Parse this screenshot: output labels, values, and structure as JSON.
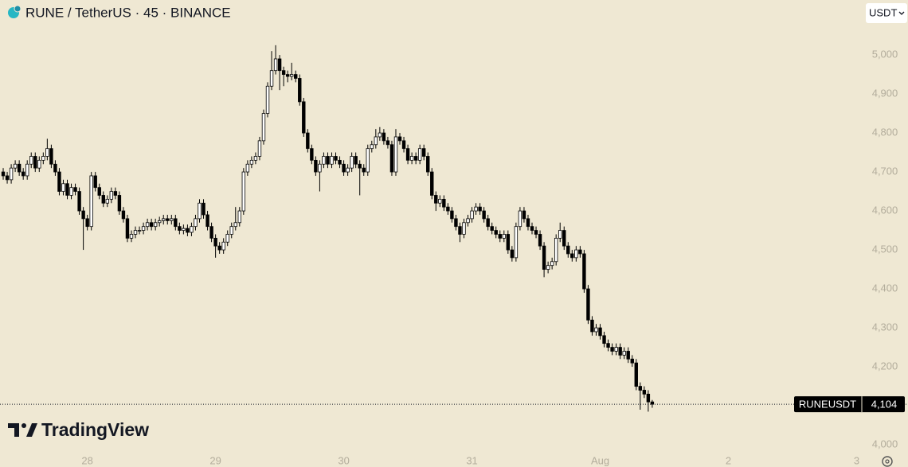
{
  "chart_data": {
    "type": "candlestick",
    "title": "RUNE / TetherUS · 45 · BINANCE",
    "currency": "USDT",
    "watermark": "TradingView",
    "up_color": "#ffffff",
    "down_color": "#000000",
    "xlim": [
      -0.8,
      214.9
    ],
    "xticks": [
      {
        "value": 21,
        "label": "28"
      },
      {
        "value": 53,
        "label": "29"
      },
      {
        "value": 85,
        "label": "30"
      },
      {
        "value": 117,
        "label": "31"
      },
      {
        "value": 149,
        "label": "Aug"
      },
      {
        "value": 181,
        "label": "2"
      },
      {
        "value": 213,
        "label": "3"
      }
    ],
    "ylim": [
      3943,
      5141
    ],
    "yticks": [
      {
        "value": 4000,
        "label": "4,000"
      },
      {
        "value": 4100,
        "label": "4,100"
      },
      {
        "value": 4200,
        "label": "4,200"
      },
      {
        "value": 4300,
        "label": "4,300"
      },
      {
        "value": 4400,
        "label": "4,400"
      },
      {
        "value": 4500,
        "label": "4,500"
      },
      {
        "value": 4600,
        "label": "4,600"
      },
      {
        "value": 4700,
        "label": "4,700"
      },
      {
        "value": 4800,
        "label": "4,800"
      },
      {
        "value": 4900,
        "label": "4,900"
      },
      {
        "value": 5000,
        "label": "5,000"
      }
    ],
    "last_price": {
      "value": 4104,
      "label": "4,104"
    },
    "series": [
      {
        "name": "RUNEUSDT",
        "open": [
          4700,
          4690,
          4680,
          4710,
          4720,
          4700,
          4690,
          4720,
          4740,
          4710,
          4730,
          4740,
          4760,
          4720,
          4700,
          4650,
          4670,
          4640,
          4660,
          4650,
          4600,
          4580,
          4560,
          4690,
          4660,
          4640,
          4620,
          4630,
          4650,
          4640,
          4600,
          4580,
          4530,
          4540,
          4550,
          4550,
          4560,
          4570,
          4560,
          4570,
          4575,
          4580,
          4575,
          4580,
          4560,
          4550,
          4555,
          4545,
          4560,
          4580,
          4620,
          4590,
          4560,
          4530,
          4510,
          4500,
          4520,
          4540,
          4560,
          4570,
          4600,
          4700,
          4720,
          4730,
          4740,
          4780,
          4850,
          4920,
          4960,
          4990,
          4960,
          4950,
          4945,
          4950,
          4940,
          4880,
          4800,
          4760,
          4730,
          4700,
          4720,
          4740,
          4720,
          4740,
          4730,
          4720,
          4700,
          4710,
          4740,
          4720,
          4710,
          4700,
          4760,
          4770,
          4790,
          4800,
          4780,
          4770,
          4700,
          4790,
          4780,
          4760,
          4730,
          4740,
          4730,
          4760,
          4740,
          4700,
          4640,
          4620,
          4630,
          4610,
          4600,
          4580,
          4560,
          4540,
          4570,
          4580,
          4600,
          4610,
          4600,
          4580,
          4560,
          4550,
          4540,
          4530,
          4540,
          4500,
          4480,
          4560,
          4600,
          4580,
          4560,
          4550,
          4540,
          4510,
          4450,
          4460,
          4470,
          4530,
          4550,
          4510,
          4490,
          4480,
          4500,
          4490,
          4400,
          4320,
          4290,
          4300,
          4280,
          4260,
          4250,
          4240,
          4250,
          4230,
          4240,
          4220,
          4210,
          4150,
          4140,
          4130,
          4110
        ],
        "high": [
          4710,
          4700,
          4720,
          4730,
          4730,
          4710,
          4730,
          4750,
          4750,
          4740,
          4750,
          4785,
          4770,
          4730,
          4710,
          4680,
          4680,
          4670,
          4670,
          4660,
          4610,
          4590,
          4700,
          4700,
          4670,
          4650,
          4640,
          4660,
          4660,
          4650,
          4610,
          4590,
          4550,
          4560,
          4560,
          4570,
          4580,
          4580,
          4580,
          4585,
          4590,
          4590,
          4590,
          4590,
          4570,
          4565,
          4565,
          4570,
          4590,
          4630,
          4630,
          4600,
          4570,
          4540,
          4520,
          4530,
          4550,
          4570,
          4610,
          4610,
          4710,
          4730,
          4740,
          4750,
          4790,
          4860,
          4930,
          5010,
          5025,
          5000,
          4970,
          4960,
          4980,
          4960,
          4950,
          4890,
          4810,
          4770,
          4740,
          4730,
          4750,
          4750,
          4750,
          4750,
          4740,
          4730,
          4720,
          4750,
          4750,
          4730,
          4720,
          4770,
          4780,
          4810,
          4815,
          4810,
          4790,
          4780,
          4810,
          4800,
          4790,
          4770,
          4750,
          4750,
          4770,
          4770,
          4750,
          4710,
          4650,
          4640,
          4640,
          4620,
          4610,
          4590,
          4570,
          4580,
          4590,
          4610,
          4620,
          4620,
          4610,
          4590,
          4570,
          4560,
          4550,
          4550,
          4550,
          4510,
          4570,
          4610,
          4610,
          4590,
          4570,
          4560,
          4550,
          4520,
          4470,
          4480,
          4540,
          4570,
          4560,
          4520,
          4500,
          4510,
          4510,
          4500,
          4410,
          4330,
          4310,
          4310,
          4290,
          4270,
          4260,
          4260,
          4260,
          4250,
          4250,
          4230,
          4220,
          4160,
          4150,
          4140,
          4115
        ],
        "low": [
          4680,
          4670,
          4670,
          4700,
          4690,
          4680,
          4680,
          4710,
          4700,
          4700,
          4720,
          4730,
          4710,
          4690,
          4640,
          4640,
          4630,
          4630,
          4640,
          4590,
          4500,
          4550,
          4550,
          4650,
          4630,
          4610,
          4610,
          4620,
          4630,
          4590,
          4570,
          4520,
          4520,
          4530,
          4540,
          4540,
          4550,
          4550,
          4550,
          4560,
          4565,
          4565,
          4565,
          4550,
          4540,
          4540,
          4535,
          4535,
          4550,
          4570,
          4580,
          4550,
          4520,
          4480,
          4490,
          4490,
          4510,
          4530,
          4550,
          4560,
          4590,
          4690,
          4710,
          4720,
          4730,
          4770,
          4840,
          4910,
          4950,
          4910,
          4920,
          4930,
          4935,
          4930,
          4870,
          4790,
          4750,
          4720,
          4690,
          4650,
          4710,
          4710,
          4710,
          4720,
          4710,
          4690,
          4690,
          4700,
          4710,
          4640,
          4690,
          4690,
          4750,
          4760,
          4780,
          4770,
          4760,
          4690,
          4690,
          4770,
          4750,
          4720,
          4720,
          4720,
          4720,
          4730,
          4690,
          4630,
          4600,
          4610,
          4600,
          4590,
          4570,
          4550,
          4520,
          4530,
          4560,
          4570,
          4590,
          4590,
          4570,
          4550,
          4540,
          4530,
          4520,
          4520,
          4490,
          4470,
          4470,
          4550,
          4570,
          4550,
          4540,
          4530,
          4500,
          4430,
          4440,
          4450,
          4460,
          4520,
          4500,
          4480,
          4470,
          4470,
          4480,
          4390,
          4310,
          4280,
          4280,
          4270,
          4250,
          4240,
          4230,
          4230,
          4220,
          4220,
          4210,
          4200,
          4140,
          4090,
          4120,
          4085,
          4095
        ],
        "close": [
          4690,
          4680,
          4710,
          4720,
          4700,
          4690,
          4720,
          4740,
          4710,
          4730,
          4740,
          4760,
          4720,
          4700,
          4650,
          4670,
          4640,
          4660,
          4650,
          4600,
          4580,
          4560,
          4690,
          4660,
          4640,
          4620,
          4630,
          4650,
          4640,
          4600,
          4580,
          4530,
          4540,
          4550,
          4550,
          4560,
          4570,
          4560,
          4570,
          4575,
          4580,
          4575,
          4580,
          4560,
          4550,
          4555,
          4545,
          4560,
          4580,
          4620,
          4590,
          4560,
          4530,
          4510,
          4500,
          4520,
          4540,
          4560,
          4570,
          4600,
          4700,
          4720,
          4730,
          4740,
          4780,
          4850,
          4920,
          4960,
          4990,
          4960,
          4950,
          4945,
          4950,
          4940,
          4880,
          4800,
          4760,
          4730,
          4700,
          4720,
          4740,
          4720,
          4740,
          4730,
          4720,
          4700,
          4710,
          4740,
          4720,
          4710,
          4700,
          4760,
          4770,
          4790,
          4800,
          4780,
          4770,
          4700,
          4790,
          4780,
          4760,
          4730,
          4740,
          4730,
          4760,
          4740,
          4700,
          4640,
          4620,
          4630,
          4610,
          4600,
          4580,
          4560,
          4540,
          4570,
          4580,
          4600,
          4610,
          4600,
          4580,
          4560,
          4550,
          4540,
          4530,
          4540,
          4500,
          4480,
          4560,
          4600,
          4580,
          4560,
          4550,
          4540,
          4510,
          4450,
          4460,
          4470,
          4530,
          4550,
          4510,
          4490,
          4480,
          4500,
          4490,
          4400,
          4320,
          4290,
          4300,
          4280,
          4260,
          4250,
          4240,
          4250,
          4230,
          4240,
          4220,
          4210,
          4150,
          4140,
          4130,
          4110,
          4104
        ]
      }
    ]
  }
}
